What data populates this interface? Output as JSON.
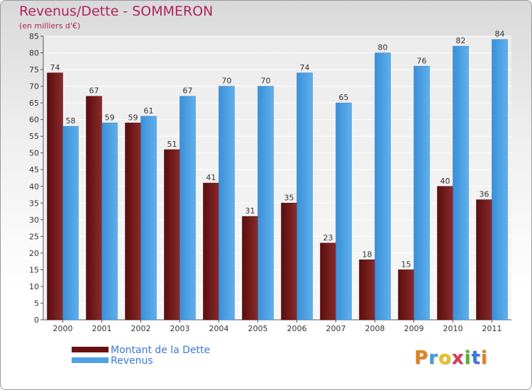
{
  "header": {
    "title": "Revenus/Dette - SOMMERON",
    "subtitle": "(en milliers d'€)"
  },
  "legend": [
    {
      "label": "Montant de la Dette",
      "color": "#6b1010"
    },
    {
      "label": "Revenus",
      "color": "#4fa2e4"
    }
  ],
  "logo": {
    "letters": [
      "P",
      "r",
      "o",
      "x",
      "i",
      "t",
      "i"
    ],
    "colors": [
      "#e0821e",
      "#3aa0d8",
      "#e8c21e",
      "#d83a5a",
      "#5ab030",
      "#3a78d8",
      "#e0821e"
    ]
  },
  "chart_data": {
    "type": "bar",
    "title": "Revenus/Dette - SOMMERON",
    "subtitle": "(en milliers d'€)",
    "xlabel": "",
    "ylabel": "",
    "ylim": [
      0,
      85
    ],
    "yticks": [
      0,
      5,
      10,
      15,
      20,
      25,
      30,
      35,
      40,
      45,
      50,
      55,
      60,
      65,
      70,
      75,
      80,
      85
    ],
    "grid": true,
    "legend_position": "bottom-left",
    "categories": [
      "2000",
      "2001",
      "2002",
      "2003",
      "2004",
      "2005",
      "2006",
      "2007",
      "2008",
      "2009",
      "2010",
      "2011"
    ],
    "series": [
      {
        "name": "Montant de la Dette",
        "color": "#6b1010",
        "values": [
          74,
          67,
          59,
          51,
          41,
          31,
          35,
          23,
          18,
          15,
          40,
          36
        ]
      },
      {
        "name": "Revenus",
        "color": "#4fa2e4",
        "values": [
          58,
          59,
          61,
          67,
          70,
          70,
          74,
          65,
          80,
          76,
          82,
          84
        ]
      }
    ]
  }
}
